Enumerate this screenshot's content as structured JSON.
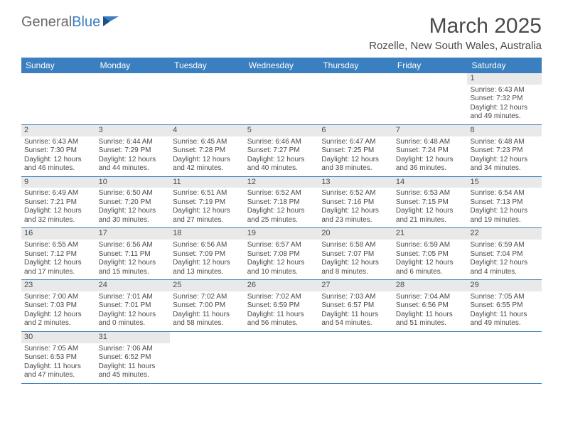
{
  "logo": {
    "part1": "General",
    "part2": "Blue"
  },
  "title": "March 2025",
  "location": "Rozelle, New South Wales, Australia",
  "colors": {
    "header_bg": "#3a7fbf",
    "header_text": "#ffffff",
    "daynum_bg": "#e9e9e9",
    "text": "#4a4a4a",
    "border": "#3a7fbf"
  },
  "day_names": [
    "Sunday",
    "Monday",
    "Tuesday",
    "Wednesday",
    "Thursday",
    "Friday",
    "Saturday"
  ],
  "labels": {
    "sunrise_prefix": "Sunrise: ",
    "sunset_prefix": "Sunset: ",
    "daylight_prefix": "Daylight: "
  },
  "weeks": [
    [
      null,
      null,
      null,
      null,
      null,
      null,
      {
        "n": "1",
        "sunrise": "6:43 AM",
        "sunset": "7:32 PM",
        "daylight": "12 hours and 49 minutes."
      }
    ],
    [
      {
        "n": "2",
        "sunrise": "6:43 AM",
        "sunset": "7:30 PM",
        "daylight": "12 hours and 46 minutes."
      },
      {
        "n": "3",
        "sunrise": "6:44 AM",
        "sunset": "7:29 PM",
        "daylight": "12 hours and 44 minutes."
      },
      {
        "n": "4",
        "sunrise": "6:45 AM",
        "sunset": "7:28 PM",
        "daylight": "12 hours and 42 minutes."
      },
      {
        "n": "5",
        "sunrise": "6:46 AM",
        "sunset": "7:27 PM",
        "daylight": "12 hours and 40 minutes."
      },
      {
        "n": "6",
        "sunrise": "6:47 AM",
        "sunset": "7:25 PM",
        "daylight": "12 hours and 38 minutes."
      },
      {
        "n": "7",
        "sunrise": "6:48 AM",
        "sunset": "7:24 PM",
        "daylight": "12 hours and 36 minutes."
      },
      {
        "n": "8",
        "sunrise": "6:48 AM",
        "sunset": "7:23 PM",
        "daylight": "12 hours and 34 minutes."
      }
    ],
    [
      {
        "n": "9",
        "sunrise": "6:49 AM",
        "sunset": "7:21 PM",
        "daylight": "12 hours and 32 minutes."
      },
      {
        "n": "10",
        "sunrise": "6:50 AM",
        "sunset": "7:20 PM",
        "daylight": "12 hours and 30 minutes."
      },
      {
        "n": "11",
        "sunrise": "6:51 AM",
        "sunset": "7:19 PM",
        "daylight": "12 hours and 27 minutes."
      },
      {
        "n": "12",
        "sunrise": "6:52 AM",
        "sunset": "7:18 PM",
        "daylight": "12 hours and 25 minutes."
      },
      {
        "n": "13",
        "sunrise": "6:52 AM",
        "sunset": "7:16 PM",
        "daylight": "12 hours and 23 minutes."
      },
      {
        "n": "14",
        "sunrise": "6:53 AM",
        "sunset": "7:15 PM",
        "daylight": "12 hours and 21 minutes."
      },
      {
        "n": "15",
        "sunrise": "6:54 AM",
        "sunset": "7:13 PM",
        "daylight": "12 hours and 19 minutes."
      }
    ],
    [
      {
        "n": "16",
        "sunrise": "6:55 AM",
        "sunset": "7:12 PM",
        "daylight": "12 hours and 17 minutes."
      },
      {
        "n": "17",
        "sunrise": "6:56 AM",
        "sunset": "7:11 PM",
        "daylight": "12 hours and 15 minutes."
      },
      {
        "n": "18",
        "sunrise": "6:56 AM",
        "sunset": "7:09 PM",
        "daylight": "12 hours and 13 minutes."
      },
      {
        "n": "19",
        "sunrise": "6:57 AM",
        "sunset": "7:08 PM",
        "daylight": "12 hours and 10 minutes."
      },
      {
        "n": "20",
        "sunrise": "6:58 AM",
        "sunset": "7:07 PM",
        "daylight": "12 hours and 8 minutes."
      },
      {
        "n": "21",
        "sunrise": "6:59 AM",
        "sunset": "7:05 PM",
        "daylight": "12 hours and 6 minutes."
      },
      {
        "n": "22",
        "sunrise": "6:59 AM",
        "sunset": "7:04 PM",
        "daylight": "12 hours and 4 minutes."
      }
    ],
    [
      {
        "n": "23",
        "sunrise": "7:00 AM",
        "sunset": "7:03 PM",
        "daylight": "12 hours and 2 minutes."
      },
      {
        "n": "24",
        "sunrise": "7:01 AM",
        "sunset": "7:01 PM",
        "daylight": "12 hours and 0 minutes."
      },
      {
        "n": "25",
        "sunrise": "7:02 AM",
        "sunset": "7:00 PM",
        "daylight": "11 hours and 58 minutes."
      },
      {
        "n": "26",
        "sunrise": "7:02 AM",
        "sunset": "6:59 PM",
        "daylight": "11 hours and 56 minutes."
      },
      {
        "n": "27",
        "sunrise": "7:03 AM",
        "sunset": "6:57 PM",
        "daylight": "11 hours and 54 minutes."
      },
      {
        "n": "28",
        "sunrise": "7:04 AM",
        "sunset": "6:56 PM",
        "daylight": "11 hours and 51 minutes."
      },
      {
        "n": "29",
        "sunrise": "7:05 AM",
        "sunset": "6:55 PM",
        "daylight": "11 hours and 49 minutes."
      }
    ],
    [
      {
        "n": "30",
        "sunrise": "7:05 AM",
        "sunset": "6:53 PM",
        "daylight": "11 hours and 47 minutes."
      },
      {
        "n": "31",
        "sunrise": "7:06 AM",
        "sunset": "6:52 PM",
        "daylight": "11 hours and 45 minutes."
      },
      null,
      null,
      null,
      null,
      null
    ]
  ]
}
